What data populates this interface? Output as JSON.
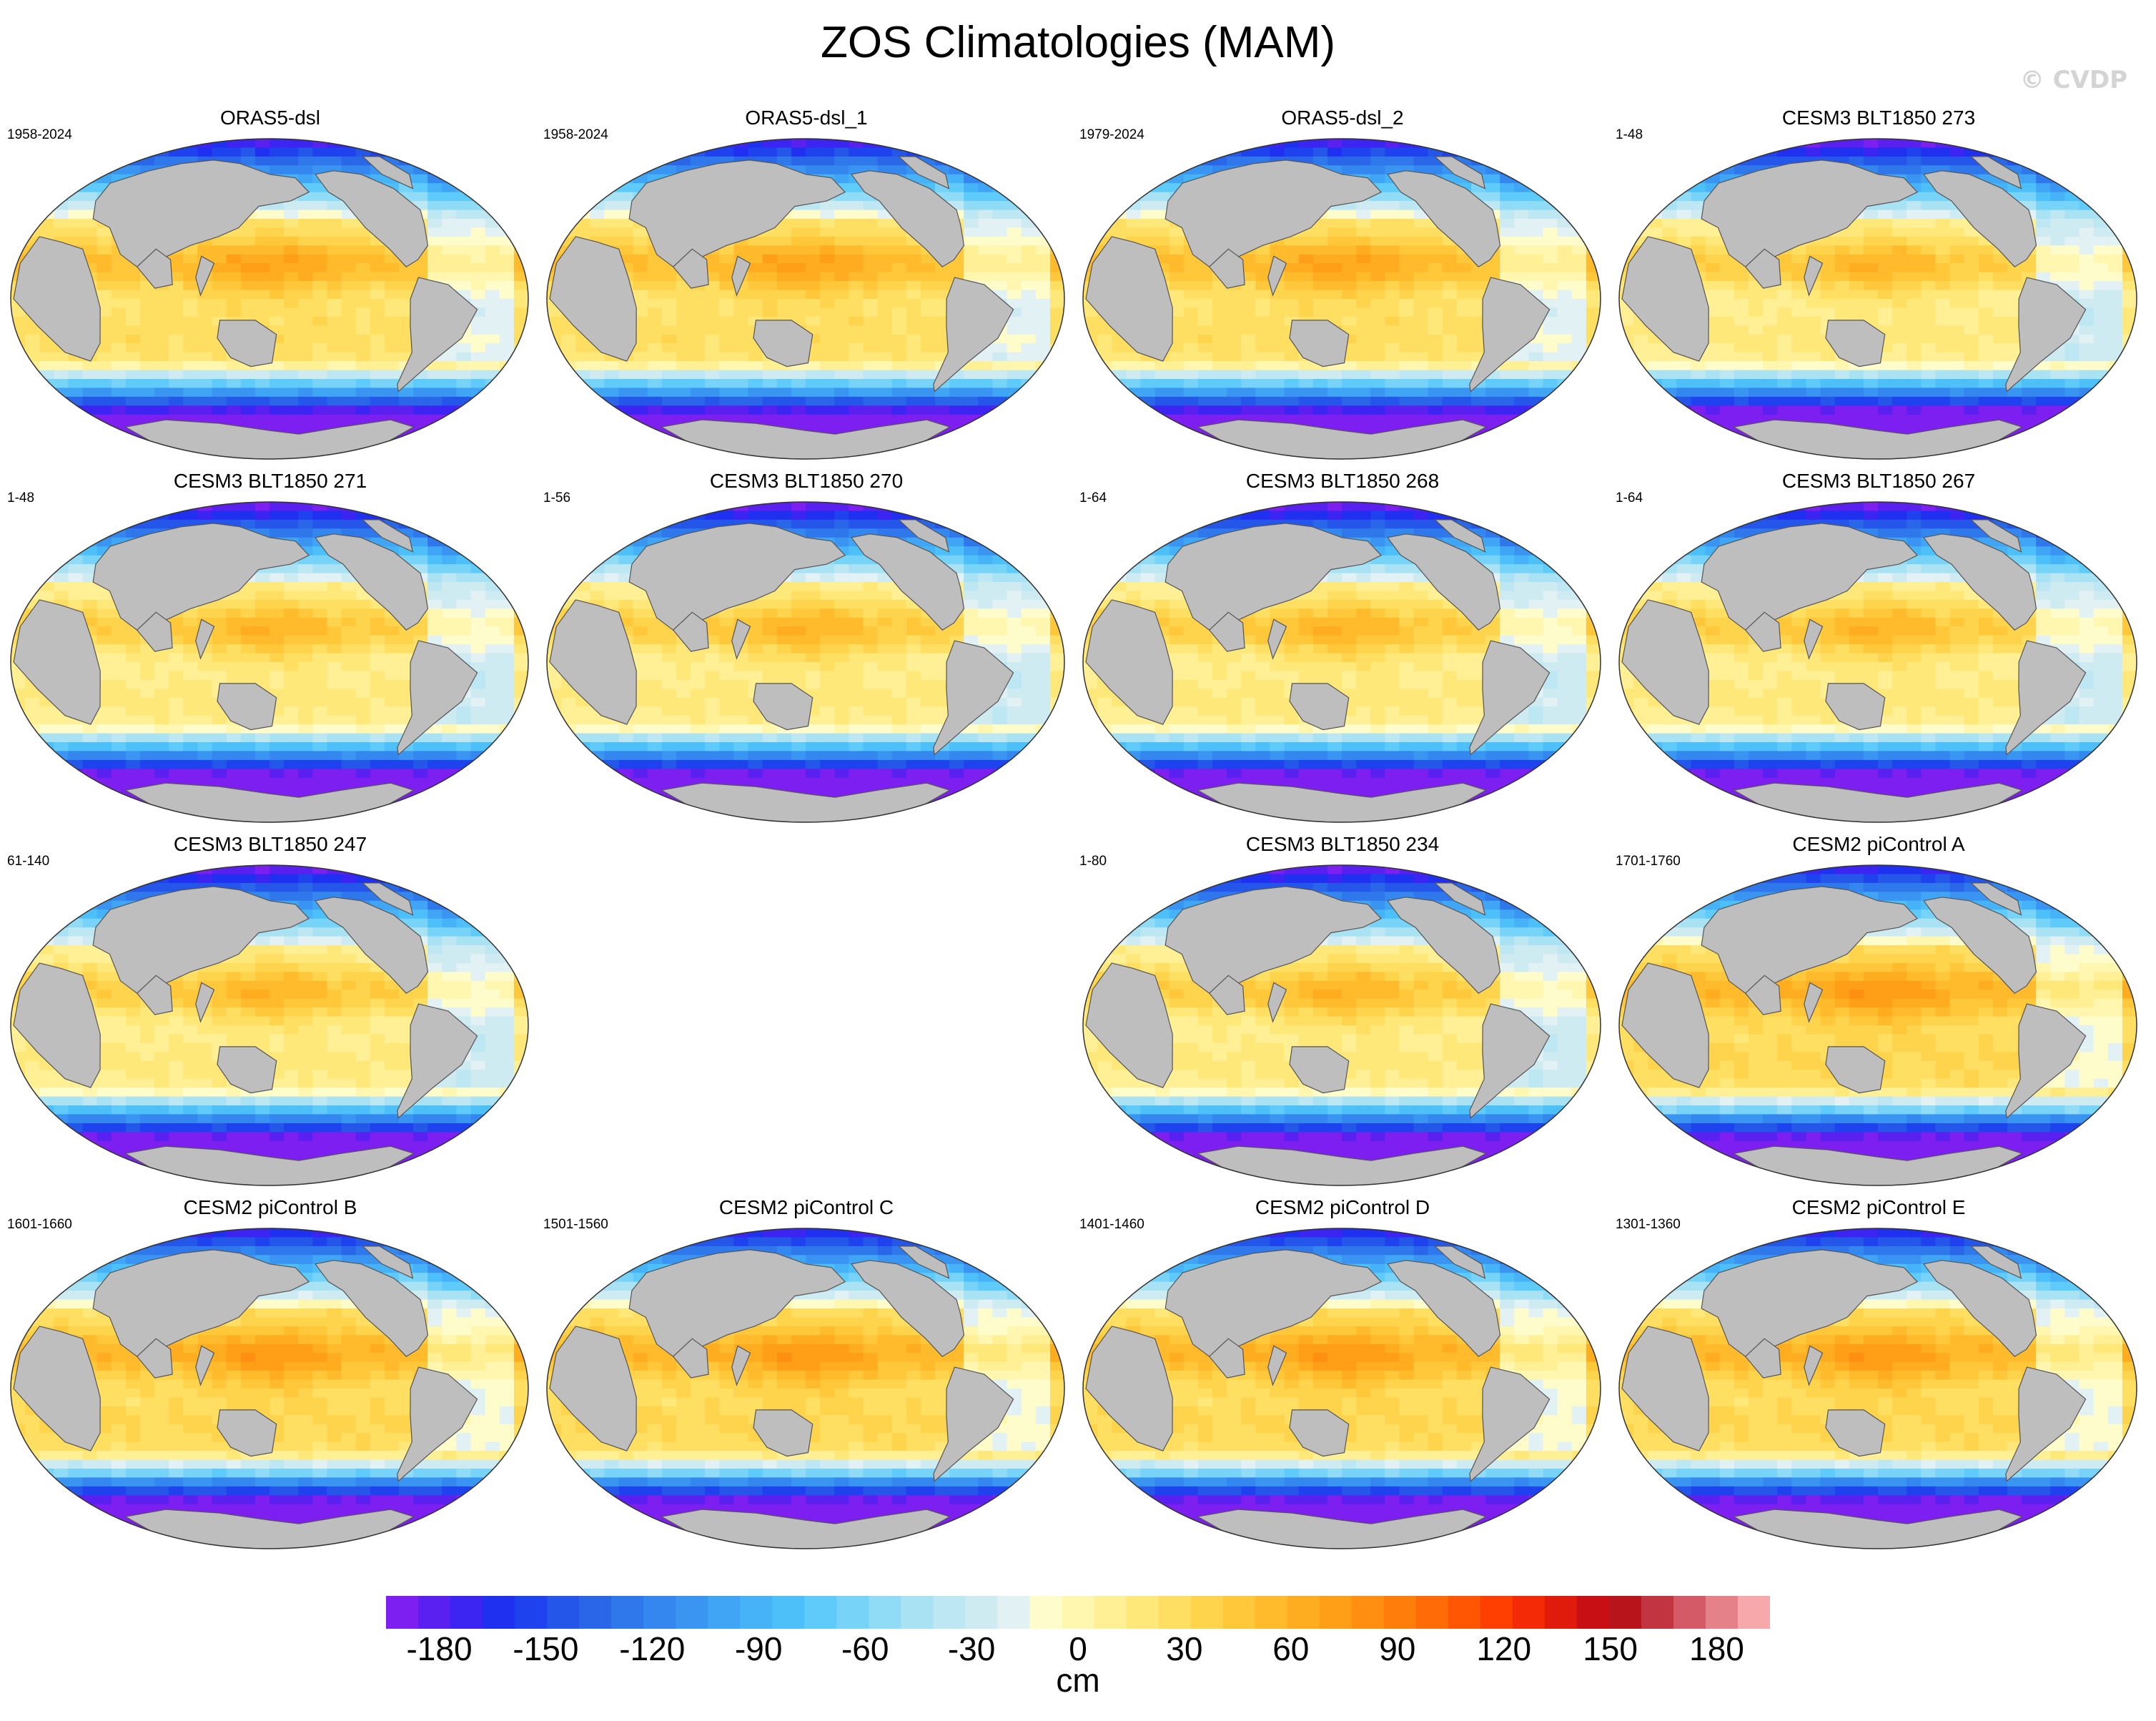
{
  "figure": {
    "title": "ZOS Climatologies (MAM)",
    "watermark": "© CVDP"
  },
  "chart_data": {
    "type": "heatmap",
    "variable": "ZOS",
    "season": "MAM",
    "projection": "robinson-like global map",
    "land_color": "#bebebe",
    "panels": [
      {
        "title": "ORAS5-dsl",
        "period": "1958-2024",
        "style": "obs"
      },
      {
        "title": "ORAS5-dsl_1",
        "period": "1958-2024",
        "style": "obs"
      },
      {
        "title": "ORAS5-dsl_2",
        "period": "1979-2024",
        "style": "obs"
      },
      {
        "title": "CESM3 BLT1850 273",
        "period": "1-48",
        "style": "cesm3"
      },
      {
        "title": "CESM3 BLT1850 271",
        "period": "1-48",
        "style": "cesm3"
      },
      {
        "title": "CESM3 BLT1850 270",
        "period": "1-56",
        "style": "cesm3"
      },
      {
        "title": "CESM3 BLT1850 268",
        "period": "1-64",
        "style": "cesm3"
      },
      {
        "title": "CESM3 BLT1850 267",
        "period": "1-64",
        "style": "cesm3"
      },
      {
        "title": "CESM3 BLT1850 247",
        "period": "61-140",
        "style": "cesm3"
      },
      null,
      {
        "title": "CESM3 BLT1850 234",
        "period": "1-80",
        "style": "cesm3"
      },
      {
        "title": "CESM2 piControl A",
        "period": "1701-1760",
        "style": "cesm2"
      },
      {
        "title": "CESM2 piControl B",
        "period": "1601-1660",
        "style": "cesm2"
      },
      {
        "title": "CESM2 piControl C",
        "period": "1501-1560",
        "style": "cesm2"
      },
      {
        "title": "CESM2 piControl D",
        "period": "1401-1460",
        "style": "cesm2"
      },
      {
        "title": "CESM2 piControl E",
        "period": "1301-1360",
        "style": "cesm2"
      }
    ],
    "colorbar": {
      "unit": "cm",
      "min": -195,
      "max": 195,
      "step": 10,
      "tick_labels": [
        "-180",
        "-150",
        "-120",
        "-90",
        "-60",
        "-30",
        "0",
        "30",
        "60",
        "90",
        "120",
        "150",
        "180"
      ],
      "tick_values": [
        -180,
        -150,
        -120,
        -90,
        -60,
        -30,
        0,
        30,
        60,
        90,
        120,
        150,
        180
      ],
      "colors": [
        "#7c1ff0",
        "#5a20f0",
        "#3c24f2",
        "#2030f0",
        "#1d42ee",
        "#2556ea",
        "#2a66e8",
        "#2f78ec",
        "#3487ef",
        "#3a95f2",
        "#40a5f5",
        "#46b2f7",
        "#4dbff9",
        "#5ecbfa",
        "#77d3f8",
        "#90dbf5",
        "#a8e2f3",
        "#bde7f2",
        "#cfebf2",
        "#e2f1f4",
        "#fffccc",
        "#fff7b0",
        "#fff095",
        "#ffe87a",
        "#ffdf62",
        "#ffd44d",
        "#ffc83b",
        "#ffbb2c",
        "#ffad20",
        "#ff9e17",
        "#ff8f10",
        "#ff7e0b",
        "#ff6b07",
        "#ff5604",
        "#ff3f02",
        "#f42a06",
        "#e01b0c",
        "#c81014",
        "#b8141c",
        "#c23440",
        "#d35a66",
        "#e58289",
        "#f6a8ab"
      ]
    }
  }
}
